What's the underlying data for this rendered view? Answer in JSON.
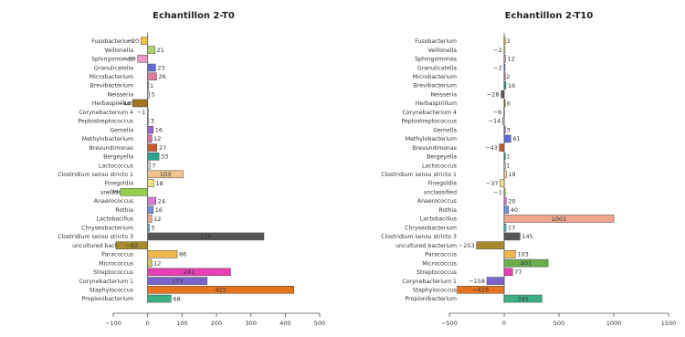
{
  "chart_data": [
    {
      "type": "bar",
      "orientation": "horizontal",
      "title": "Echantillon 2-T0",
      "xlim": [
        -100,
        500
      ],
      "xticks": [
        -100,
        0,
        100,
        200,
        300,
        400,
        500
      ],
      "categories": [
        "Fusobacterium",
        "Veillonella",
        "Sphingomonas",
        "Granulicatella",
        "Microbacterium",
        "Brevibacterium",
        "Neisseria",
        "Herbaspirillum",
        "Corynebacterium 4",
        "Peptostreptococcus",
        "Gemella",
        "Methylobacterium",
        "Brevundimonas",
        "Bergeyella",
        "Lactococcus",
        "Clostridium sensu stricto 1",
        "Finegoldia",
        "unclassified",
        "Anaerococcus",
        "Rothia",
        "Lactobacillus",
        "Chryseobacterium",
        "Clostridium sensu stricto 3",
        "uncultured bacterium",
        "Paracoccus",
        "Micrococcus",
        "Streptococcus",
        "Corynebacterium 1",
        "Staphylococcus",
        "Propionibacterium"
      ],
      "values": [
        -20,
        21,
        -29,
        23,
        26,
        1,
        5,
        -44,
        -1,
        3,
        16,
        12,
        27,
        33,
        7,
        103,
        18,
        -79,
        24,
        16,
        12,
        5,
        338,
        -92,
        86,
        12,
        241,
        173,
        425,
        68
      ],
      "labels": [
        "−20",
        "21",
        "−29",
        "23",
        "26",
        "1",
        "5",
        "−44",
        "−1",
        "3",
        "16",
        "12",
        "27",
        "33",
        "7",
        "103",
        "18",
        "−79",
        "24",
        "16",
        "12",
        "5",
        "338",
        "−92",
        "86",
        "12",
        "241",
        "173",
        "425",
        "68"
      ],
      "colors": [
        "#f5c542",
        "#a9d46b",
        "#e89ac7",
        "#5b6fd0",
        "#e07a9e",
        "#b0b0b0",
        "#cfcfcf",
        "#a0731f",
        "#cfcfcf",
        "#cfcfcf",
        "#9e63d6",
        "#e06fa5",
        "#c85a2a",
        "#2aa38e",
        "#cfcfcf",
        "#f2c38c",
        "#f0e07a",
        "#92cf4f",
        "#d77ad6",
        "#6f8fe0",
        "#f2a58c",
        "#4fb9b0",
        "#575757",
        "#a88a2c",
        "#f0b64a",
        "#d4c860",
        "#e83fb5",
        "#7b64c9",
        "#e8731e",
        "#3cb083"
      ]
    },
    {
      "type": "bar",
      "orientation": "horizontal",
      "title": "Echantillon 2-T10",
      "xlim": [
        -500,
        1500
      ],
      "xticks": [
        -500,
        0,
        500,
        1000,
        1500
      ],
      "categories": [
        "Fusobacterium",
        "Veillonella",
        "Sphingomonas",
        "Granulicatella",
        "Microbacterium",
        "Brevibacterium",
        "Neisseria",
        "Herbaspirillum",
        "Corynebacterium 4",
        "Peptostreptococcus",
        "Gemella",
        "Methylobacterium",
        "Brevundimonas",
        "Bergeyella",
        "Lactococcus",
        "Clostridium sensu stricto 1",
        "Finegoldia",
        "unclassified",
        "Anaerococcus",
        "Rothia",
        "Lactobacillus",
        "Chryseobacterium",
        "Clostridium sensu stricto 3",
        "uncultured bacterium",
        "Paracoccus",
        "Micrococcus",
        "Streptococcus",
        "Corynebacterium 1",
        "Staphylococcus",
        "Propionibacterium"
      ],
      "values": [
        3,
        -2,
        12,
        -2,
        2,
        16,
        -28,
        6,
        -6,
        -14,
        3,
        61,
        -43,
        1,
        1,
        19,
        -37,
        -1,
        20,
        40,
        1001,
        17,
        145,
        -253,
        103,
        401,
        77,
        -158,
        -429,
        345
      ],
      "labels": [
        "3",
        "−2",
        "12",
        "−2",
        "2",
        "16",
        "−28",
        "6",
        "−6",
        "−14",
        "3",
        "61",
        "−43",
        "1",
        "1",
        "19",
        "−37",
        "−1",
        "20",
        "40",
        "1001",
        "17",
        "145",
        "−253",
        "103",
        "401",
        "77",
        "−158",
        "−429",
        "345"
      ],
      "colors": [
        "#f5c542",
        "#a9d46b",
        "#e89ac7",
        "#5b6fd0",
        "#e07a9e",
        "#2aa38e",
        "#575757",
        "#a0731f",
        "#cfcfcf",
        "#cfcfcf",
        "#9e63d6",
        "#5b6fd0",
        "#c85a2a",
        "#2aa38e",
        "#cfcfcf",
        "#f2c38c",
        "#f0e07a",
        "#92cf4f",
        "#d77ad6",
        "#6f8fe0",
        "#f2a58c",
        "#4fb9b0",
        "#575757",
        "#a88a2c",
        "#f0b64a",
        "#6ab04a",
        "#e83fb5",
        "#7b64c9",
        "#e8731e",
        "#3cb083"
      ]
    }
  ]
}
